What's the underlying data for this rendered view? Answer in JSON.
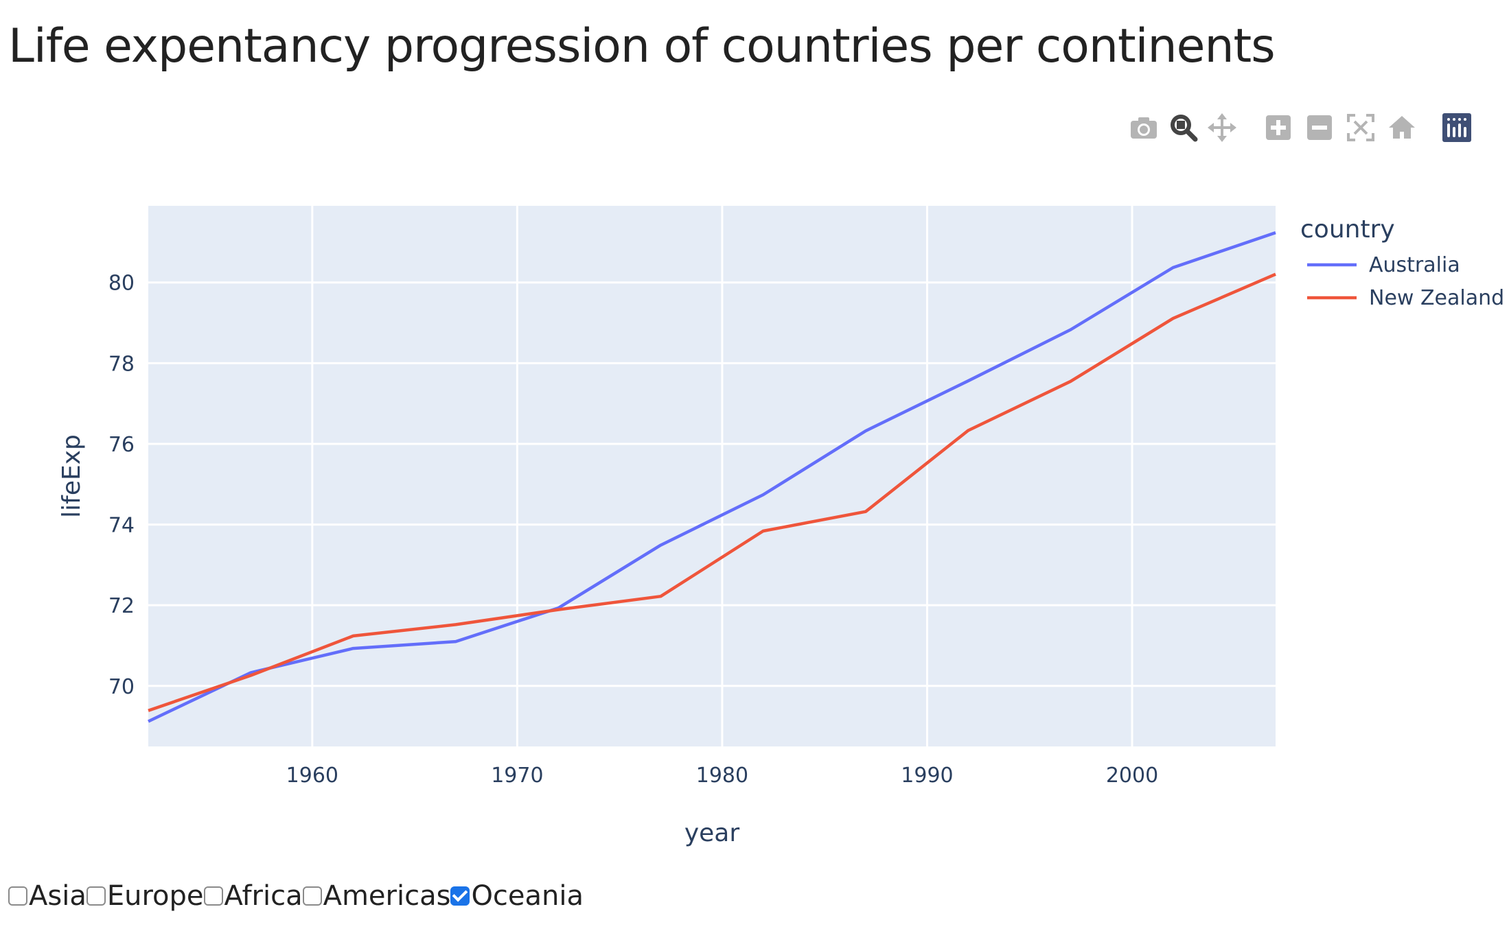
{
  "page": {
    "title": "Life expentancy progression of countries per continents"
  },
  "modebar": {
    "buttons": [
      {
        "name": "camera-icon",
        "label": "Download plot as a png",
        "active": false
      },
      {
        "name": "zoom-icon",
        "label": "Zoom",
        "active": true
      },
      {
        "name": "pan-icon",
        "label": "Pan",
        "active": false
      },
      {
        "name": "zoom-in-icon",
        "label": "Zoom in",
        "active": false
      },
      {
        "name": "zoom-out-icon",
        "label": "Zoom out",
        "active": false
      },
      {
        "name": "autoscale-icon",
        "label": "Autoscale",
        "active": false
      },
      {
        "name": "home-icon",
        "label": "Reset axes",
        "active": false
      },
      {
        "name": "plotly-logo-icon",
        "label": "Produced with Plotly",
        "active": false
      }
    ],
    "colors": {
      "inactive": "#b4b4b4",
      "active": "#444444",
      "logo_bg": "#3f4f75"
    }
  },
  "filters": [
    {
      "label": "Asia",
      "checked": false
    },
    {
      "label": "Europe",
      "checked": false
    },
    {
      "label": "Africa",
      "checked": false
    },
    {
      "label": "Americas",
      "checked": false
    },
    {
      "label": "Oceania",
      "checked": true
    }
  ],
  "chart_data": {
    "type": "line",
    "title": "Life expentancy progression of countries per continents",
    "xlabel": "year",
    "ylabel": "lifeExp",
    "xlim": [
      1952,
      2007
    ],
    "ylim": [
      68.5,
      81.9
    ],
    "xticks": [
      1960,
      1970,
      1980,
      1990,
      2000
    ],
    "yticks": [
      70,
      72,
      74,
      76,
      78,
      80
    ],
    "grid": true,
    "plot_bgcolor": "#e5ecf6",
    "legend": {
      "title": "country",
      "placement": "right"
    },
    "x": [
      1952,
      1957,
      1962,
      1967,
      1972,
      1977,
      1982,
      1987,
      1992,
      1997,
      2002,
      2007
    ],
    "series": [
      {
        "name": "Australia",
        "color": "#636efa",
        "values": [
          69.12,
          70.33,
          70.93,
          71.1,
          71.93,
          73.49,
          74.74,
          76.32,
          77.56,
          78.83,
          80.37,
          81.235
        ]
      },
      {
        "name": "New Zealand",
        "color": "#ef553b",
        "values": [
          69.39,
          70.26,
          71.24,
          71.52,
          71.89,
          72.22,
          73.84,
          74.32,
          76.33,
          77.55,
          79.11,
          80.204
        ]
      }
    ]
  }
}
